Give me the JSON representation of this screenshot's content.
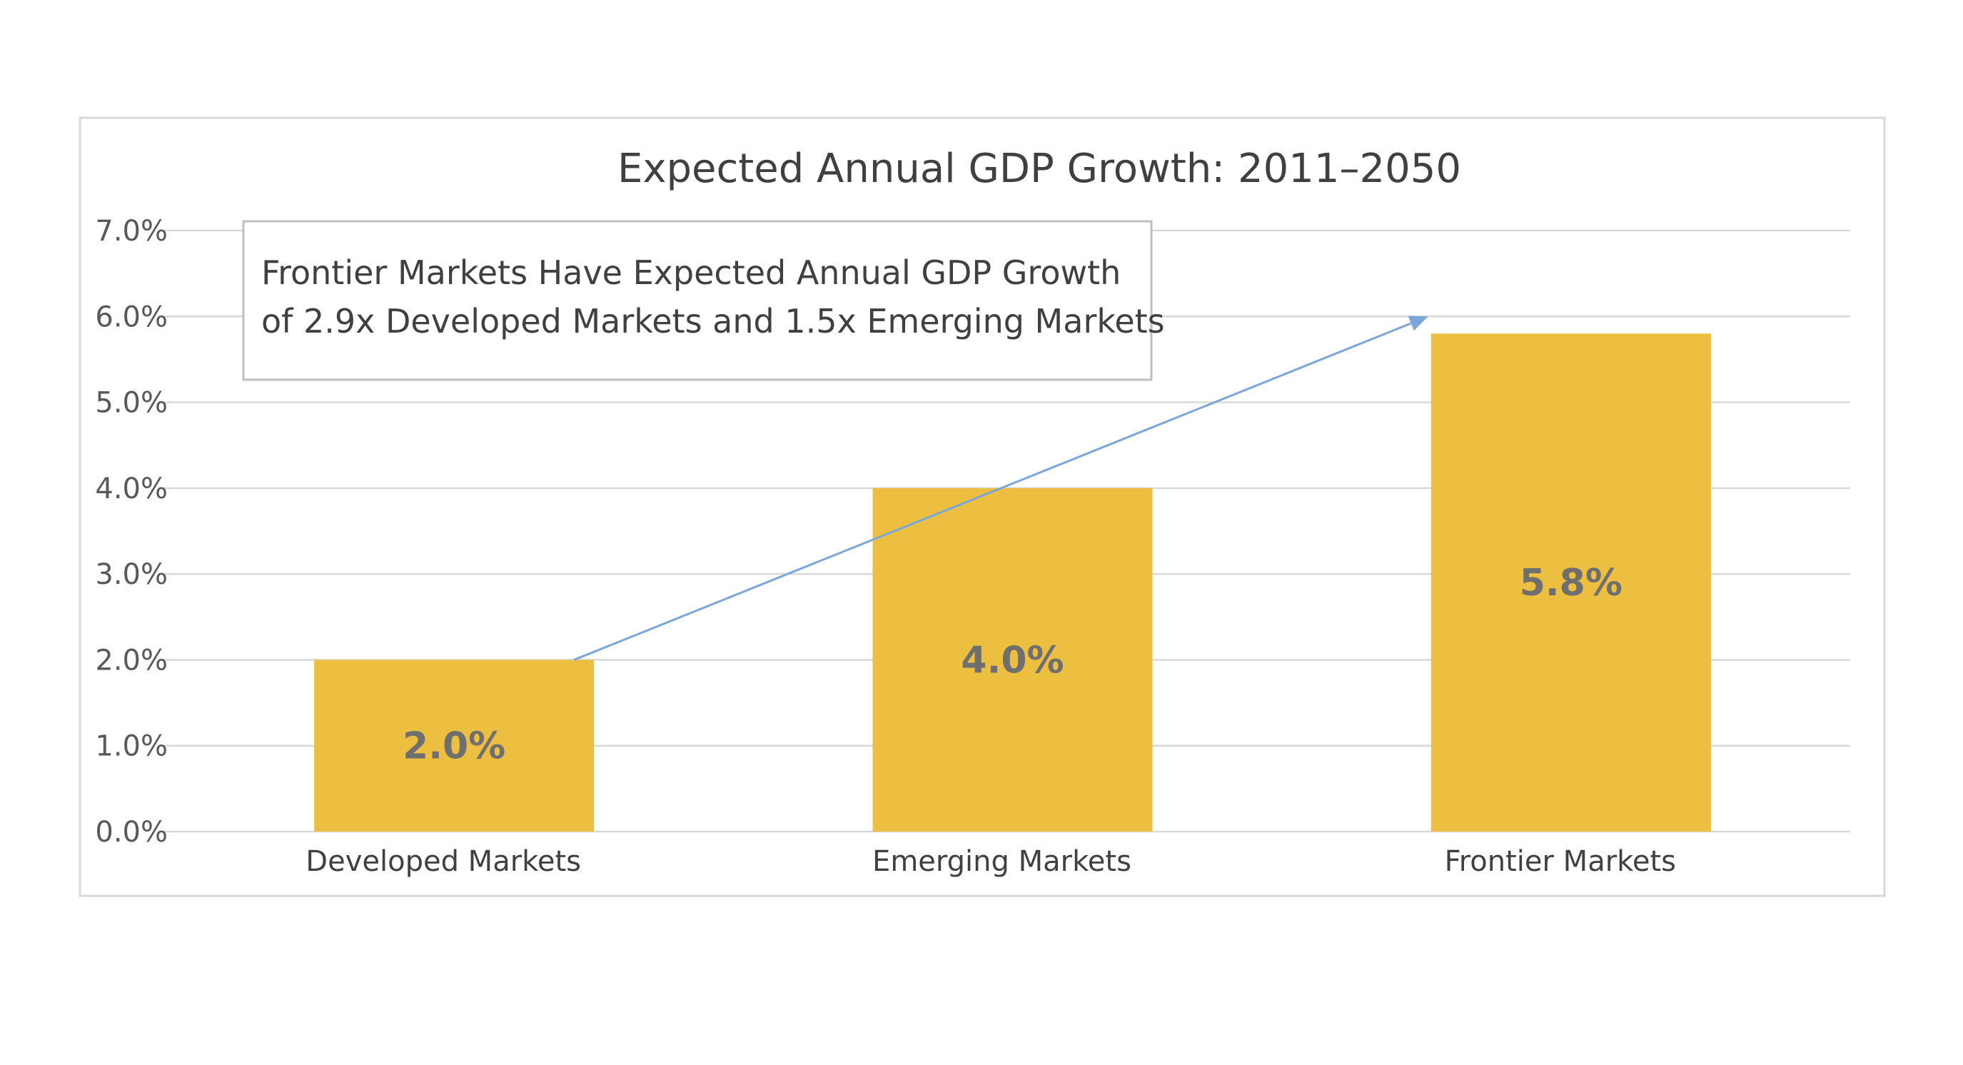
{
  "chart_data": {
    "type": "bar",
    "title": "Expected Annual GDP Growth: 2011–2050",
    "categories": [
      "Developed Markets",
      "Emerging Markets",
      "Frontier Markets"
    ],
    "values": [
      2.0,
      4.0,
      5.8
    ],
    "value_labels": [
      "2.0%",
      "4.0%",
      "5.8%"
    ],
    "ylim": [
      0,
      7
    ],
    "yticks": [
      0,
      1,
      2,
      3,
      4,
      5,
      6,
      7
    ],
    "ytick_labels": [
      "0.0%",
      "1.0%",
      "2.0%",
      "3.0%",
      "4.0%",
      "5.0%",
      "6.0%",
      "7.0%"
    ],
    "xlabel": "",
    "ylabel": "",
    "grid": true,
    "legend": "none",
    "bar_color": "#ecbf41",
    "annotation": {
      "lines": [
        "Frontier Markets Have Expected Annual GDP Growth",
        "of 2.9x Developed Markets and 1.5x Emerging Markets"
      ],
      "arrow_from": {
        "category": "Developed Markets",
        "value": 2.0
      },
      "arrow_to": {
        "category": "Frontier Markets",
        "value": 6.0
      },
      "arrow_color": "#7aa6d8"
    }
  }
}
